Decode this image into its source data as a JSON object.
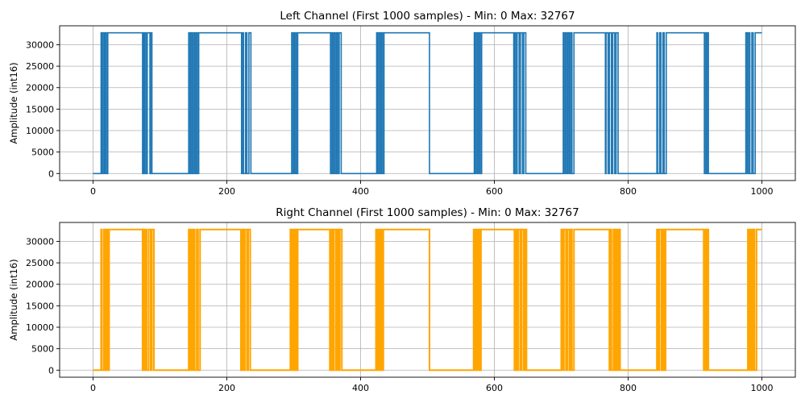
{
  "chart_data": [
    {
      "type": "line",
      "title": "Left Channel (First 1000 samples) - Min: 0 Max: 32767",
      "xlabel": "",
      "ylabel": "Amplitude (int16)",
      "xlim": [
        -50,
        1050
      ],
      "ylim": [
        -1638.35,
        34405.35
      ],
      "xticks": [
        0,
        200,
        400,
        600,
        800,
        1000
      ],
      "xtick_labels": [
        "0",
        "200",
        "400",
        "600",
        "800",
        "1000"
      ],
      "yticks": [
        0,
        5000,
        10000,
        15000,
        20000,
        25000,
        30000
      ],
      "ytick_labels": [
        "0",
        "5000",
        "10000",
        "15000",
        "20000",
        "25000",
        "30000"
      ],
      "grid": true,
      "series": [
        {
          "name": "Left",
          "color": "#1f77b4",
          "low": 0,
          "high": 32767,
          "start": 0,
          "end": 1000,
          "start_level": "low",
          "transitions": [
            12,
            13,
            15,
            17,
            18,
            20,
            22,
            74,
            75,
            76,
            77,
            79,
            81,
            85,
            86,
            88,
            143,
            144,
            146,
            148,
            150,
            152,
            154,
            156,
            158,
            222,
            223,
            225,
            228,
            230,
            233,
            236,
            297,
            298,
            300,
            301,
            303,
            304,
            306,
            355,
            356,
            358,
            360,
            362,
            364,
            366,
            368,
            371,
            424,
            425,
            427,
            429,
            431,
            433,
            435,
            503,
            570,
            571,
            573,
            575,
            577,
            579,
            581,
            629,
            630,
            632,
            634,
            637,
            639,
            642,
            644,
            647,
            703,
            704,
            706,
            708,
            710,
            712,
            714,
            716,
            719,
            766,
            767,
            770,
            772,
            775,
            777,
            780,
            782,
            785,
            843,
            844,
            847,
            849,
            852,
            854,
            857,
            914,
            915,
            917,
            919,
            920,
            976,
            978,
            980,
            982,
            985,
            987,
            990
          ]
        }
      ]
    },
    {
      "type": "line",
      "title": "Right Channel (First 1000 samples) - Min: 0 Max: 32767",
      "xlabel": "",
      "ylabel": "Amplitude (int16)",
      "xlim": [
        -50,
        1050
      ],
      "ylim": [
        -1638.35,
        34405.35
      ],
      "xticks": [
        0,
        200,
        400,
        600,
        800,
        1000
      ],
      "xtick_labels": [
        "0",
        "200",
        "400",
        "600",
        "800",
        "1000"
      ],
      "yticks": [
        0,
        5000,
        10000,
        15000,
        20000,
        25000,
        30000
      ],
      "ytick_labels": [
        "0",
        "5000",
        "10000",
        "15000",
        "20000",
        "25000",
        "30000"
      ],
      "grid": true,
      "series": [
        {
          "name": "Right",
          "color": "#ffa500",
          "low": 0,
          "high": 32767,
          "start": 0,
          "end": 1000,
          "start_level": "low",
          "transitions": [
            12,
            13,
            16,
            18,
            20,
            22,
            24,
            74,
            75,
            77,
            78,
            80,
            83,
            86,
            88,
            91,
            143,
            144,
            146,
            148,
            150,
            152,
            155,
            157,
            160,
            221,
            223,
            225,
            227,
            230,
            232,
            235,
            295,
            296,
            298,
            300,
            302,
            304,
            306,
            354,
            356,
            358,
            360,
            363,
            365,
            367,
            369,
            372,
            423,
            424,
            426,
            428,
            430,
            432,
            434,
            503,
            569,
            570,
            572,
            574,
            576,
            578,
            580,
            630,
            632,
            634,
            636,
            639,
            641,
            644,
            646,
            648,
            700,
            702,
            704,
            707,
            709,
            712,
            714,
            716,
            719,
            772,
            773,
            775,
            778,
            780,
            782,
            784,
            786,
            788,
            843,
            845,
            847,
            850,
            852,
            854,
            856,
            913,
            914,
            916,
            918,
            920,
            979,
            981,
            983,
            985,
            987,
            989,
            992
          ]
        }
      ]
    }
  ]
}
